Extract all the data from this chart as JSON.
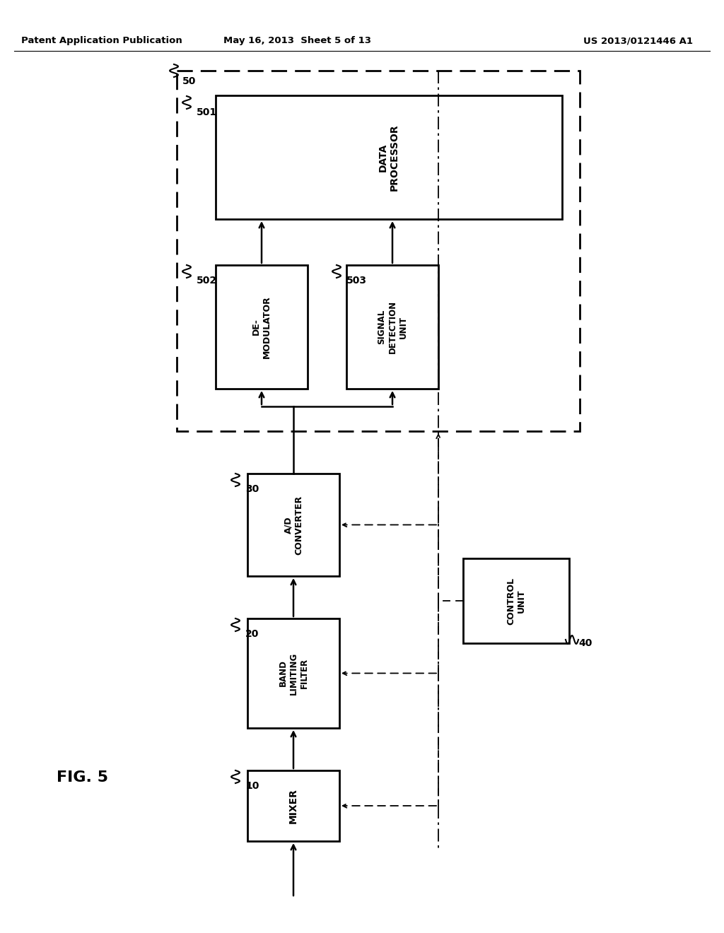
{
  "bg_color": "#ffffff",
  "header_left": "Patent Application Publication",
  "header_mid": "May 16, 2013  Sheet 5 of 13",
  "header_right": "US 2013/0121446 A1",
  "fig_label": "FIG. 5"
}
